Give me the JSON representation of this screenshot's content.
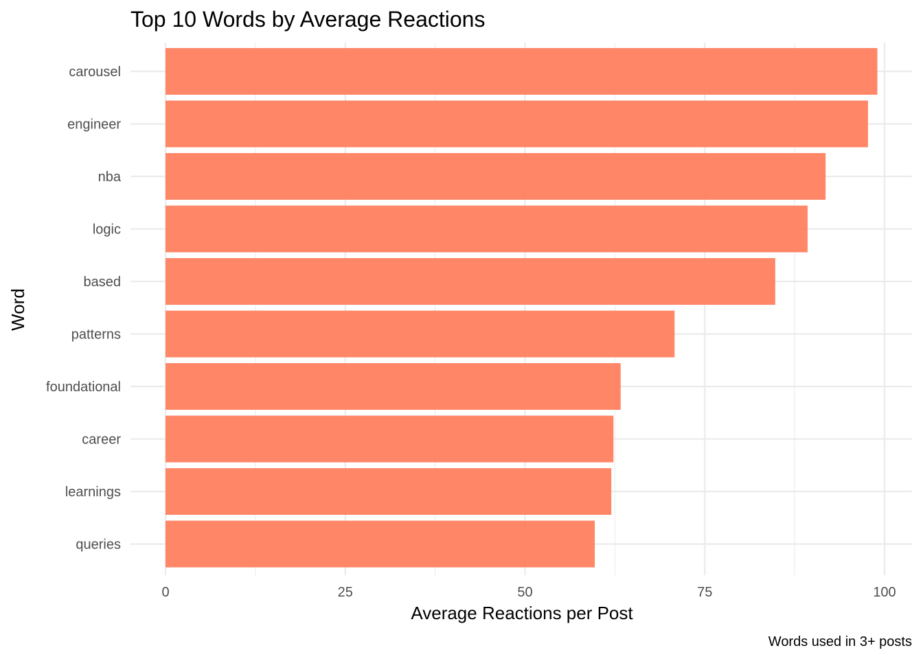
{
  "chart_data": {
    "type": "bar",
    "orientation": "horizontal",
    "title": "Top 10 Words by Average Reactions",
    "xlabel": "Average Reactions per Post",
    "ylabel": "Word",
    "caption": "Words used in 3+ posts",
    "categories": [
      "carousel",
      "engineer",
      "nba",
      "logic",
      "based",
      "patterns",
      "foundational",
      "career",
      "learnings",
      "queries"
    ],
    "values": [
      99,
      97.7,
      91.8,
      89.3,
      84.8,
      70.8,
      63.3,
      62.3,
      62,
      59.7
    ],
    "xlim": [
      0,
      103.9
    ],
    "xticks": [
      0,
      25,
      50,
      75,
      100
    ],
    "xtick_labels": [
      "0",
      "25",
      "50",
      "75",
      "100"
    ],
    "grid": true,
    "bar_color": "#ff7f5f",
    "bar_opacity": 0.95
  }
}
